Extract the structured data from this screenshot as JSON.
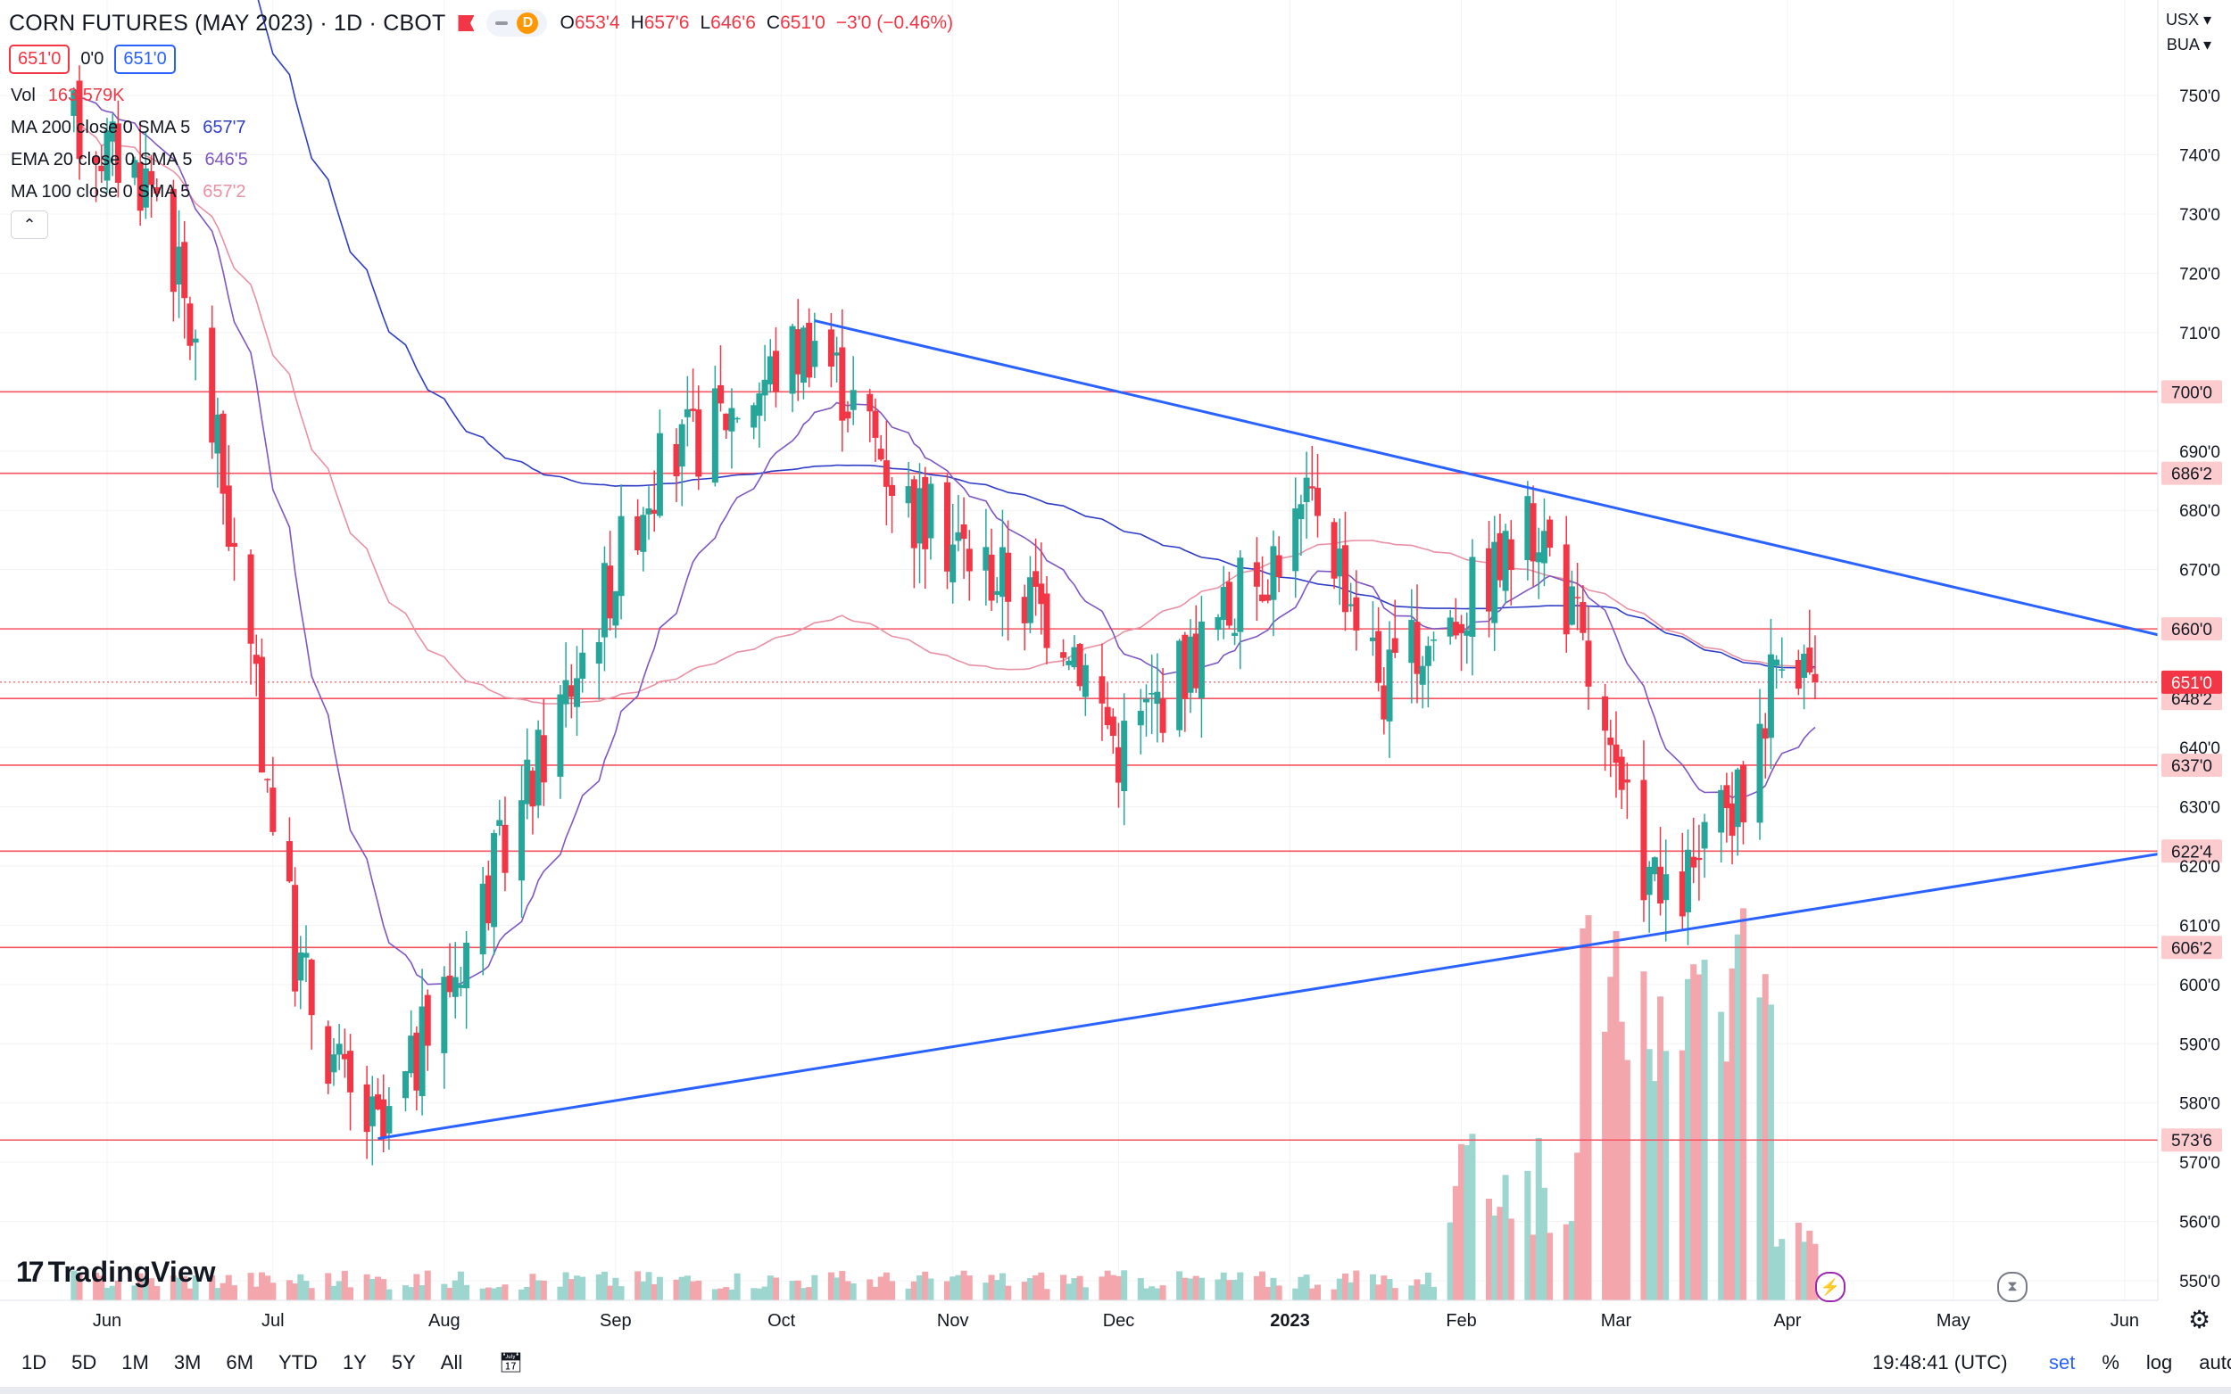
{
  "header": {
    "symbol": "CORN FUTURES (MAY 2023) · 1D · CBOT",
    "badge": "D",
    "ohlc": [
      {
        "k": "O",
        "v": "653'4"
      },
      {
        "k": "H",
        "v": "657'6"
      },
      {
        "k": "L",
        "v": "646'6"
      },
      {
        "k": "C",
        "v": "651'0"
      },
      {
        "k": "",
        "v": "−3'0 (−0.46%)"
      }
    ],
    "bid": "651'0",
    "spread": "0'0",
    "ask": "651'0"
  },
  "indicators": [
    {
      "name": "Vol",
      "value": "163.579K",
      "color": "#f23645"
    },
    {
      "name": "MA 200 close 0 SMA 5",
      "value": "657'7",
      "color": "#2e3dc7"
    },
    {
      "name": "EMA 20 close 0 SMA 5",
      "value": "646'5",
      "color": "#7e57c2"
    },
    {
      "name": "MA 100 close 0 SMA 5",
      "value": "657'2",
      "color": "#e991a4"
    }
  ],
  "currency": [
    "USX",
    "BUA"
  ],
  "logo_text": "TradingView",
  "bottom": {
    "ranges": [
      "1D",
      "5D",
      "1M",
      "3M",
      "6M",
      "YTD",
      "1Y",
      "5Y",
      "All"
    ],
    "time": "19:48:41 (UTC)",
    "options": [
      "set",
      "%",
      "log",
      "auto"
    ]
  },
  "chart_data": {
    "type": "candlestick",
    "y_axis_labels": [
      "750'0",
      "740'0",
      "730'0",
      "720'0",
      "710'0",
      "690'0",
      "680'0",
      "670'0",
      "640'0",
      "630'0",
      "620'0",
      "610'0",
      "600'0",
      "590'0",
      "580'0",
      "570'0",
      "560'0",
      "550'0"
    ],
    "x_axis_labels": [
      "Jun",
      "Jul",
      "Aug",
      "Sep",
      "Oct",
      "Nov",
      "Dec",
      "2023",
      "Feb",
      "Mar",
      "Apr",
      "May",
      "Jun"
    ],
    "ylim": [
      547,
      757
    ],
    "level_labels": [
      "700'0",
      "686'2",
      "660'0",
      "648'2",
      "637'0",
      "622'4",
      "606'2",
      "573'6"
    ],
    "levels": [
      700,
      686.25,
      660,
      648.25,
      637,
      622.5,
      606.25,
      573.75
    ],
    "last_price": 651,
    "last_price_label": "651'0",
    "trendlines": [
      {
        "from": [
          "2022-10-07",
          712
        ],
        "to": [
          "2023-06-20",
          659
        ],
        "color": "#2962ff"
      },
      {
        "from": [
          "2022-07-20",
          574
        ],
        "to": [
          "2023-06-20",
          622
        ],
        "color": "#2962ff"
      }
    ],
    "key_points": [
      [
        "2022-05-26",
        745
      ],
      [
        "2022-06-10",
        735
      ],
      [
        "2022-06-21",
        690
      ],
      [
        "2022-07-05",
        605
      ],
      [
        "2022-07-15",
        580
      ],
      [
        "2022-07-21",
        574
      ],
      [
        "2022-08-15",
        630
      ],
      [
        "2022-09-07",
        685
      ],
      [
        "2022-10-07",
        710
      ],
      [
        "2022-10-25",
        680
      ],
      [
        "2022-11-22",
        660
      ],
      [
        "2022-12-01",
        640
      ],
      [
        "2023-01-06",
        682
      ],
      [
        "2023-01-18",
        650
      ],
      [
        "2023-02-15",
        678
      ],
      [
        "2023-02-22",
        660
      ],
      [
        "2023-03-01",
        632
      ],
      [
        "2023-03-10",
        612
      ],
      [
        "2023-03-24",
        632
      ],
      [
        "2023-03-31",
        660
      ],
      [
        "2023-04-06",
        651
      ]
    ],
    "colors": {
      "up": "#26a69a",
      "down": "#f23645",
      "ma200": "#2e3dc7",
      "ema20": "#7e57c2",
      "ma100": "#e991a4",
      "level": "#f7525f",
      "trend": "#2962ff"
    }
  }
}
